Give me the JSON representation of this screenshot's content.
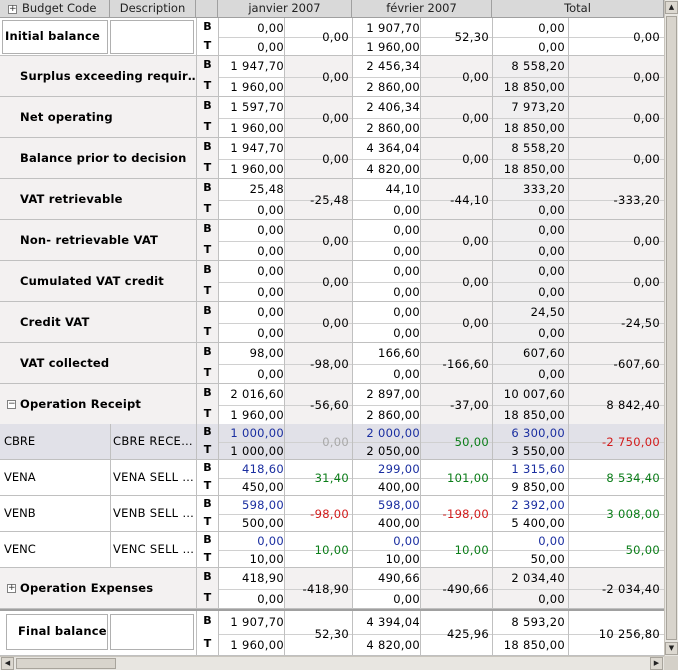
{
  "columns": {
    "budget_code": "Budget Code",
    "description": "Description",
    "period1": "janvier 2007",
    "period2": "février 2007",
    "total": "Total"
  },
  "row_types": {
    "budget": "B",
    "actual": "T"
  },
  "initial_balance": {
    "label": "Initial balance",
    "b1": "0,00",
    "t1": "0,00",
    "v1": "0,00",
    "b2": "1 907,70",
    "t2": "1 960,00",
    "v2": "52,30",
    "bt": "0,00",
    "tt": "0,00",
    "vt": "0,00"
  },
  "summary_rows": [
    {
      "label": "Surplus exceeding requir…",
      "b1": "1 947,70",
      "t1": "1 960,00",
      "v1": "0,00",
      "b2": "2 456,34",
      "t2": "2 860,00",
      "v2": "0,00",
      "bt": "8 558,20",
      "tt": "18 850,00",
      "vt": "0,00"
    },
    {
      "label": "Net operating",
      "b1": "1 597,70",
      "t1": "1 960,00",
      "v1": "0,00",
      "b2": "2 406,34",
      "t2": "2 860,00",
      "v2": "0,00",
      "bt": "7 973,20",
      "tt": "18 850,00",
      "vt": "0,00"
    },
    {
      "label": "Balance prior to decision",
      "b1": "1 947,70",
      "t1": "1 960,00",
      "v1": "0,00",
      "b2": "4 364,04",
      "t2": "4 820,00",
      "v2": "0,00",
      "bt": "8 558,20",
      "tt": "18 850,00",
      "vt": "0,00"
    },
    {
      "label": "VAT retrievable",
      "b1": "25,48",
      "t1": "0,00",
      "v1": "-25,48",
      "b2": "44,10",
      "t2": "0,00",
      "v2": "-44,10",
      "bt": "333,20",
      "tt": "0,00",
      "vt": "-333,20"
    },
    {
      "label": "Non- retrievable VAT",
      "b1": "0,00",
      "t1": "0,00",
      "v1": "0,00",
      "b2": "0,00",
      "t2": "0,00",
      "v2": "0,00",
      "bt": "0,00",
      "tt": "0,00",
      "vt": "0,00"
    },
    {
      "label": "Cumulated VAT credit",
      "b1": "0,00",
      "t1": "0,00",
      "v1": "0,00",
      "b2": "0,00",
      "t2": "0,00",
      "v2": "0,00",
      "bt": "0,00",
      "tt": "0,00",
      "vt": "0,00"
    },
    {
      "label": "Credit VAT",
      "b1": "0,00",
      "t1": "0,00",
      "v1": "0,00",
      "b2": "0,00",
      "t2": "0,00",
      "v2": "0,00",
      "bt": "24,50",
      "tt": "0,00",
      "vt": "-24,50"
    },
    {
      "label": "VAT collected",
      "b1": "98,00",
      "t1": "0,00",
      "v1": "-98,00",
      "b2": "166,60",
      "t2": "0,00",
      "v2": "-166,60",
      "bt": "607,60",
      "tt": "0,00",
      "vt": "-607,60"
    },
    {
      "label": "Operation Receipt",
      "expander": "−",
      "b1": "2 016,60",
      "t1": "1 960,00",
      "v1": "-56,60",
      "b2": "2 897,00",
      "t2": "2 860,00",
      "v2": "-37,00",
      "bt": "10 007,60",
      "tt": "18 850,00",
      "vt": "8 842,40"
    }
  ],
  "detail_rows": [
    {
      "code": "CBRE",
      "desc": "CBRE RECE…",
      "b1": "1 000,00",
      "t1": "1 000,00",
      "v1": "0,00",
      "v1_color": "#a8a8a8",
      "b2": "2 000,00",
      "t2": "2 050,00",
      "v2": "50,00",
      "v2_color": "#0a7d18",
      "bt": "6 300,00",
      "tt": "3 550,00",
      "vt": "-2 750,00",
      "vt_color": "#d21a1a"
    },
    {
      "code": "VENA",
      "desc": "VENA SELL …",
      "b1": "418,60",
      "t1": "450,00",
      "v1": "31,40",
      "v1_color": "#0a7d18",
      "b2": "299,00",
      "t2": "400,00",
      "v2": "101,00",
      "v2_color": "#0a7d18",
      "bt": "1 315,60",
      "tt": "9 850,00",
      "vt": "8 534,40",
      "vt_color": "#0a7d18"
    },
    {
      "code": "VENB",
      "desc": "VENB SELL …",
      "b1": "598,00",
      "t1": "500,00",
      "v1": "-98,00",
      "v1_color": "#d21a1a",
      "b2": "598,00",
      "t2": "400,00",
      "v2": "-198,00",
      "v2_color": "#d21a1a",
      "bt": "2 392,00",
      "tt": "5 400,00",
      "vt": "3 008,00",
      "vt_color": "#0a7d18"
    },
    {
      "code": "VENC",
      "desc": "VENC SELL …",
      "b1": "0,00",
      "t1": "10,00",
      "v1": "10,00",
      "v1_color": "#0a7d18",
      "b2": "0,00",
      "t2": "10,00",
      "v2": "10,00",
      "v2_color": "#0a7d18",
      "bt": "0,00",
      "tt": "50,00",
      "vt": "50,00",
      "vt_color": "#0a7d18"
    }
  ],
  "expenses_row": {
    "label": "Operation Expenses",
    "expander": "+",
    "b1": "418,90",
    "t1": "0,00",
    "v1": "-418,90",
    "b2": "490,66",
    "t2": "0,00",
    "v2": "-490,66",
    "bt": "2 034,40",
    "tt": "0,00",
    "vt": "-2 034,40"
  },
  "final_balance": {
    "label": "Final balance",
    "b1": "1 907,70",
    "t1": "1 960,00",
    "v1": "52,30",
    "b2": "4 394,04",
    "t2": "4 820,00",
    "v2": "425,96",
    "bt": "8 593,20",
    "tt": "18 850,00",
    "vt": "10 256,80"
  },
  "header_expander": "+"
}
